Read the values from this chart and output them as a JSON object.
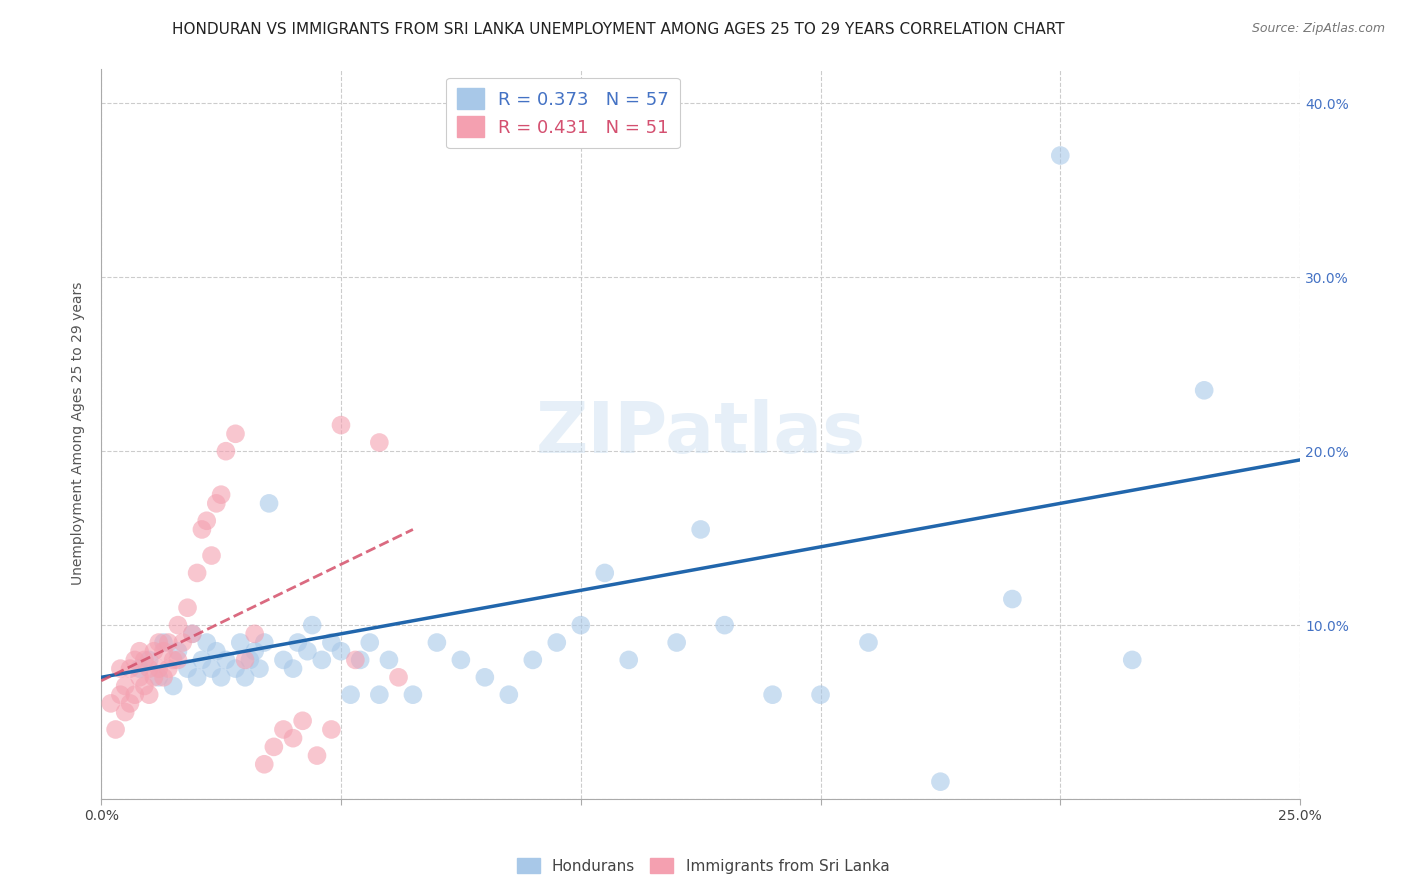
{
  "title": "HONDURAN VS IMMIGRANTS FROM SRI LANKA UNEMPLOYMENT AMONG AGES 25 TO 29 YEARS CORRELATION CHART",
  "source": "Source: ZipAtlas.com",
  "ylabel": "Unemployment Among Ages 25 to 29 years",
  "xlim": [
    0.0,
    0.25
  ],
  "ylim": [
    0.0,
    0.42
  ],
  "xticks": [
    0.0,
    0.05,
    0.1,
    0.15,
    0.2,
    0.25
  ],
  "yticks": [
    0.0,
    0.1,
    0.2,
    0.3,
    0.4
  ],
  "xticklabels": [
    "0.0%",
    "",
    "",
    "",
    "",
    "25.0%"
  ],
  "yticklabels_right": [
    "",
    "10.0%",
    "20.0%",
    "30.0%",
    "40.0%"
  ],
  "watermark": "ZIPatlas",
  "legend_blue_label": "R = 0.373   N = 57",
  "legend_pink_label": "R = 0.431   N = 51",
  "legend_hondurans": "Hondurans",
  "legend_srilanka": "Immigrants from Sri Lanka",
  "blue_color": "#a8c8e8",
  "pink_color": "#f4a0b0",
  "trendline_blue_color": "#2166ac",
  "trendline_pink_color": "#d4506a",
  "blue_scatter_x": [
    0.008,
    0.01,
    0.012,
    0.013,
    0.015,
    0.016,
    0.018,
    0.019,
    0.02,
    0.021,
    0.022,
    0.023,
    0.024,
    0.025,
    0.026,
    0.028,
    0.029,
    0.03,
    0.031,
    0.032,
    0.033,
    0.034,
    0.035,
    0.038,
    0.04,
    0.041,
    0.043,
    0.044,
    0.046,
    0.048,
    0.05,
    0.052,
    0.054,
    0.056,
    0.058,
    0.06,
    0.065,
    0.07,
    0.075,
    0.08,
    0.085,
    0.09,
    0.095,
    0.1,
    0.105,
    0.11,
    0.12,
    0.125,
    0.13,
    0.14,
    0.15,
    0.16,
    0.175,
    0.19,
    0.2,
    0.215,
    0.23
  ],
  "blue_scatter_y": [
    0.075,
    0.08,
    0.07,
    0.09,
    0.065,
    0.085,
    0.075,
    0.095,
    0.07,
    0.08,
    0.09,
    0.075,
    0.085,
    0.07,
    0.08,
    0.075,
    0.09,
    0.07,
    0.08,
    0.085,
    0.075,
    0.09,
    0.17,
    0.08,
    0.075,
    0.09,
    0.085,
    0.1,
    0.08,
    0.09,
    0.085,
    0.06,
    0.08,
    0.09,
    0.06,
    0.08,
    0.06,
    0.09,
    0.08,
    0.07,
    0.06,
    0.08,
    0.09,
    0.1,
    0.13,
    0.08,
    0.09,
    0.155,
    0.1,
    0.06,
    0.06,
    0.09,
    0.01,
    0.115,
    0.37,
    0.08,
    0.235
  ],
  "pink_scatter_x": [
    0.002,
    0.003,
    0.004,
    0.004,
    0.005,
    0.005,
    0.006,
    0.006,
    0.007,
    0.007,
    0.008,
    0.008,
    0.009,
    0.009,
    0.01,
    0.01,
    0.011,
    0.011,
    0.012,
    0.012,
    0.013,
    0.013,
    0.014,
    0.014,
    0.015,
    0.016,
    0.016,
    0.017,
    0.018,
    0.019,
    0.02,
    0.021,
    0.022,
    0.023,
    0.024,
    0.025,
    0.026,
    0.028,
    0.03,
    0.032,
    0.034,
    0.036,
    0.038,
    0.04,
    0.042,
    0.045,
    0.048,
    0.05,
    0.053,
    0.058,
    0.062
  ],
  "pink_scatter_y": [
    0.055,
    0.04,
    0.06,
    0.075,
    0.05,
    0.065,
    0.055,
    0.075,
    0.06,
    0.08,
    0.07,
    0.085,
    0.065,
    0.08,
    0.06,
    0.075,
    0.07,
    0.085,
    0.075,
    0.09,
    0.07,
    0.085,
    0.075,
    0.09,
    0.08,
    0.1,
    0.08,
    0.09,
    0.11,
    0.095,
    0.13,
    0.155,
    0.16,
    0.14,
    0.17,
    0.175,
    0.2,
    0.21,
    0.08,
    0.095,
    0.02,
    0.03,
    0.04,
    0.035,
    0.045,
    0.025,
    0.04,
    0.215,
    0.08,
    0.205,
    0.07
  ],
  "title_fontsize": 11,
  "axis_label_fontsize": 10,
  "tick_fontsize": 10,
  "watermark_fontsize": 52
}
